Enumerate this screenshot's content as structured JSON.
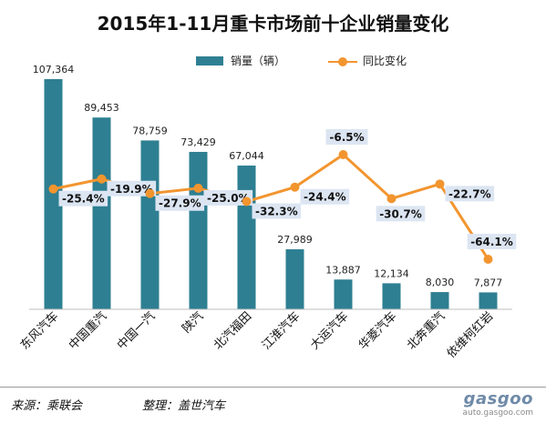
{
  "chart_data": {
    "type": "bar",
    "title": "2015年1-11月重卡市场前十企业销量变化",
    "categories": [
      "东风汽车",
      "中国重汽",
      "中国一汽",
      "陕汽",
      "北汽福田",
      "江淮汽车",
      "大运汽车",
      "华菱汽车",
      "北奔重汽",
      "依维柯红岩"
    ],
    "series": [
      {
        "name": "销量（辆）",
        "type": "bar",
        "color": "#2E7F92",
        "values": [
          107364,
          89453,
          78759,
          73429,
          67044,
          27989,
          13887,
          12134,
          8030,
          7877
        ],
        "labels": [
          "107,364",
          "89,453",
          "78,759",
          "73,429",
          "67,044",
          "27,989",
          "13,887",
          "12,134",
          "8,030",
          "7,877"
        ]
      },
      {
        "name": "同比变化",
        "type": "line",
        "color": "#F2952F",
        "values": [
          -25.4,
          -19.9,
          -27.9,
          -25.0,
          -32.3,
          -24.4,
          -6.5,
          -30.7,
          -22.7,
          -64.1
        ],
        "labels": [
          "-25.4%",
          "-19.9%",
          "-27.9%",
          "-25.0%",
          "-32.3%",
          "-24.4%",
          "-6.5%",
          "-30.7%",
          "-22.7%",
          "-64.1%"
        ]
      }
    ],
    "legend_position": "top",
    "grid": false
  },
  "footer": {
    "source": "来源：乘联会",
    "editor": "整理：盖世汽车",
    "logo": "gasgoo",
    "logo_url": "auto.gasgoo.com"
  }
}
